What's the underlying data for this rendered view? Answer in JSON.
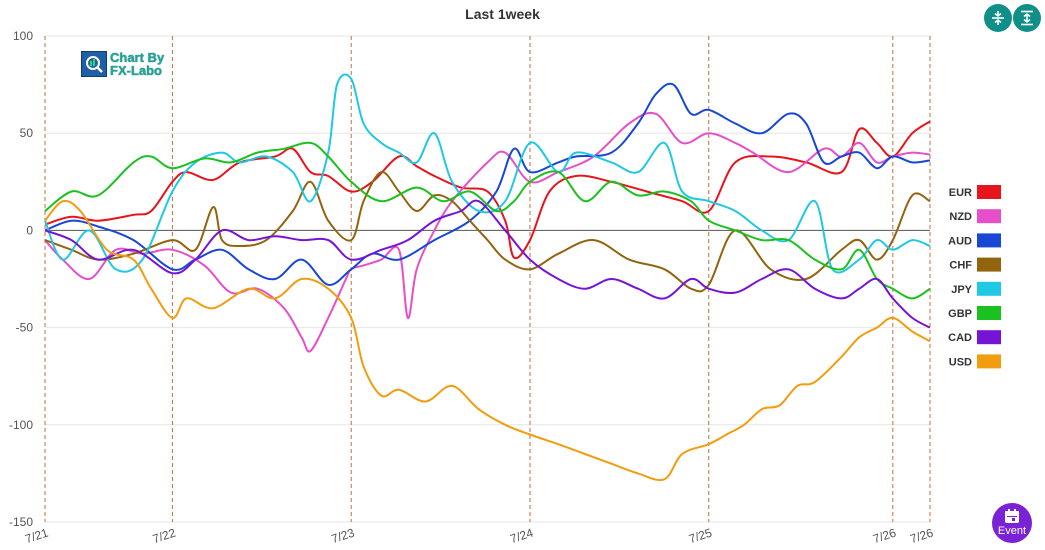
{
  "title": "Last 1week",
  "logo": {
    "line1": "Chart By",
    "line2": "FX-Labo"
  },
  "event_button": {
    "label": "Event"
  },
  "colors": {
    "accent": "#0f8f88",
    "event": "#7a22d6",
    "dayline": "#c0703a",
    "grid": "#e6e6e6",
    "zero": "#555555"
  },
  "icons": {
    "toolbar_1": "collapse-vertical-icon",
    "toolbar_2": "expand-vertical-icon",
    "event": "calendar-icon"
  },
  "chart_data": {
    "type": "line",
    "xlabel": "",
    "ylabel": "",
    "x_range": [
      0,
      5
    ],
    "ylim": [
      -150,
      100
    ],
    "yticks": [
      100,
      50,
      0,
      -50,
      -100,
      -150
    ],
    "xticks": [
      {
        "label": "7/21",
        "x": 0
      },
      {
        "label": "7/22",
        "x": 0.72
      },
      {
        "label": "7/23",
        "x": 1.73
      },
      {
        "label": "7/24",
        "x": 2.74
      },
      {
        "label": "7/25",
        "x": 3.75
      },
      {
        "label": "7/26",
        "x": 4.79
      },
      {
        "label": "7/26",
        "x": 5.0
      }
    ],
    "grid": "horizontal",
    "legend_position": "right",
    "series": [
      {
        "name": "EUR",
        "color": "#e8141b",
        "x": [
          0,
          0.15,
          0.3,
          0.5,
          0.6,
          0.72,
          0.8,
          0.95,
          1.1,
          1.3,
          1.4,
          1.5,
          1.6,
          1.73,
          1.85,
          2.0,
          2.1,
          2.2,
          2.35,
          2.5,
          2.6,
          2.65,
          2.74,
          2.85,
          3.0,
          3.2,
          3.4,
          3.6,
          3.75,
          3.9,
          4.1,
          4.3,
          4.5,
          4.6,
          4.7,
          4.79,
          4.9,
          5.0
        ],
        "values": [
          3,
          7,
          5,
          8,
          10,
          25,
          30,
          26,
          35,
          38,
          42,
          30,
          28,
          20,
          25,
          38,
          33,
          28,
          22,
          20,
          5,
          -14,
          -5,
          20,
          28,
          25,
          20,
          15,
          10,
          35,
          38,
          35,
          30,
          52,
          45,
          38,
          50,
          56
        ]
      },
      {
        "name": "NZD",
        "color": "#e64fc9",
        "x": [
          0,
          0.1,
          0.25,
          0.4,
          0.55,
          0.72,
          0.9,
          1.05,
          1.2,
          1.35,
          1.45,
          1.5,
          1.6,
          1.7,
          1.73,
          1.8,
          1.9,
          2.0,
          2.05,
          2.1,
          2.2,
          2.3,
          2.5,
          2.6,
          2.74,
          2.9,
          3.1,
          3.3,
          3.45,
          3.6,
          3.75,
          3.9,
          4.0,
          4.2,
          4.4,
          4.5,
          4.6,
          4.7,
          4.79,
          4.9,
          5.0
        ],
        "values": [
          -5,
          -15,
          -25,
          -10,
          -12,
          -10,
          -18,
          -32,
          -30,
          -40,
          -55,
          -62,
          -45,
          -25,
          -20,
          -18,
          -15,
          -10,
          -45,
          -20,
          0,
          15,
          35,
          40,
          25,
          30,
          38,
          55,
          60,
          45,
          50,
          45,
          40,
          30,
          42,
          38,
          45,
          35,
          38,
          40,
          39
        ]
      },
      {
        "name": "AUD",
        "color": "#1847d6",
        "x": [
          0,
          0.15,
          0.3,
          0.5,
          0.72,
          0.85,
          1.0,
          1.15,
          1.3,
          1.45,
          1.6,
          1.73,
          1.85,
          2.0,
          2.2,
          2.4,
          2.55,
          2.65,
          2.74,
          2.9,
          3.0,
          3.2,
          3.35,
          3.45,
          3.55,
          3.65,
          3.75,
          3.9,
          4.05,
          4.2,
          4.3,
          4.4,
          4.5,
          4.6,
          4.7,
          4.79,
          4.9,
          5.0
        ],
        "values": [
          0,
          5,
          2,
          -5,
          -20,
          -15,
          -10,
          -20,
          -25,
          -15,
          -28,
          -20,
          -12,
          -15,
          -5,
          5,
          20,
          42,
          30,
          35,
          38,
          40,
          55,
          70,
          75,
          60,
          62,
          55,
          50,
          60,
          55,
          35,
          38,
          40,
          32,
          38,
          35,
          36
        ]
      },
      {
        "name": "CHF",
        "color": "#93640e",
        "x": [
          0,
          0.15,
          0.3,
          0.5,
          0.72,
          0.85,
          0.95,
          1.0,
          1.1,
          1.25,
          1.4,
          1.5,
          1.6,
          1.73,
          1.8,
          1.9,
          2.0,
          2.1,
          2.2,
          2.3,
          2.4,
          2.5,
          2.6,
          2.74,
          2.9,
          3.1,
          3.3,
          3.5,
          3.65,
          3.75,
          3.9,
          4.1,
          4.3,
          4.5,
          4.6,
          4.7,
          4.79,
          4.9,
          5.0
        ],
        "values": [
          -5,
          -10,
          -15,
          -12,
          -5,
          -10,
          12,
          -5,
          -8,
          -5,
          10,
          25,
          5,
          -5,
          15,
          30,
          20,
          10,
          18,
          15,
          5,
          -5,
          -15,
          -20,
          -12,
          -5,
          -15,
          -20,
          -30,
          -28,
          0,
          -20,
          -25,
          -10,
          -5,
          -15,
          -5,
          18,
          15
        ]
      },
      {
        "name": "JPY",
        "color": "#1fc8e3",
        "x": [
          0,
          0.1,
          0.25,
          0.4,
          0.55,
          0.72,
          0.85,
          1.0,
          1.1,
          1.25,
          1.4,
          1.5,
          1.6,
          1.65,
          1.73,
          1.8,
          1.9,
          2.0,
          2.1,
          2.2,
          2.3,
          2.45,
          2.6,
          2.74,
          2.9,
          3.0,
          3.2,
          3.35,
          3.5,
          3.6,
          3.75,
          3.9,
          4.05,
          4.2,
          4.35,
          4.45,
          4.6,
          4.7,
          4.79,
          4.9,
          5.0
        ],
        "values": [
          5,
          -15,
          0,
          -20,
          -15,
          20,
          35,
          40,
          35,
          38,
          30,
          15,
          40,
          75,
          78,
          55,
          45,
          40,
          35,
          50,
          25,
          10,
          15,
          45,
          30,
          40,
          35,
          30,
          45,
          20,
          15,
          10,
          0,
          -5,
          15,
          -20,
          -15,
          -5,
          -10,
          -5,
          -8
        ]
      },
      {
        "name": "GBP",
        "color": "#1ac11f",
        "x": [
          0,
          0.15,
          0.3,
          0.5,
          0.6,
          0.72,
          0.9,
          1.05,
          1.2,
          1.35,
          1.5,
          1.6,
          1.73,
          1.9,
          2.1,
          2.25,
          2.4,
          2.55,
          2.65,
          2.74,
          2.9,
          3.05,
          3.2,
          3.35,
          3.5,
          3.65,
          3.75,
          3.9,
          4.05,
          4.2,
          4.35,
          4.5,
          4.6,
          4.7,
          4.79,
          4.9,
          5.0
        ],
        "values": [
          10,
          20,
          18,
          35,
          38,
          32,
          37,
          35,
          40,
          42,
          45,
          38,
          25,
          15,
          22,
          15,
          20,
          10,
          15,
          25,
          30,
          15,
          25,
          18,
          20,
          15,
          5,
          0,
          -5,
          -5,
          -15,
          -20,
          -10,
          -25,
          -30,
          -35,
          -30
        ]
      },
      {
        "name": "CAD",
        "color": "#7614d6",
        "x": [
          0,
          0.15,
          0.3,
          0.5,
          0.72,
          0.85,
          1.0,
          1.15,
          1.3,
          1.45,
          1.6,
          1.73,
          1.9,
          2.05,
          2.2,
          2.35,
          2.45,
          2.6,
          2.74,
          2.9,
          3.05,
          3.2,
          3.35,
          3.5,
          3.65,
          3.75,
          3.9,
          4.05,
          4.2,
          4.35,
          4.5,
          4.6,
          4.7,
          4.79,
          4.9,
          5.0
        ],
        "values": [
          0,
          -5,
          -15,
          -10,
          -22,
          -15,
          0,
          -5,
          -3,
          -5,
          -5,
          -15,
          -10,
          -5,
          5,
          10,
          15,
          0,
          -15,
          -25,
          -30,
          -25,
          -30,
          -35,
          -25,
          -30,
          -32,
          -25,
          -20,
          -30,
          -35,
          -30,
          -25,
          -35,
          -45,
          -50
        ]
      },
      {
        "name": "USD",
        "color": "#f29c10",
        "x": [
          0,
          0.1,
          0.2,
          0.35,
          0.5,
          0.6,
          0.72,
          0.8,
          0.95,
          1.15,
          1.3,
          1.45,
          1.6,
          1.73,
          1.8,
          1.9,
          2.0,
          2.15,
          2.3,
          2.45,
          2.6,
          2.74,
          2.9,
          3.05,
          3.2,
          3.35,
          3.5,
          3.6,
          3.75,
          3.85,
          3.95,
          4.05,
          4.15,
          4.25,
          4.35,
          4.5,
          4.6,
          4.7,
          4.79,
          4.9,
          5.0
        ],
        "values": [
          5,
          15,
          10,
          -10,
          -15,
          -30,
          -45,
          -35,
          -40,
          -30,
          -35,
          -25,
          -30,
          -45,
          -70,
          -85,
          -82,
          -88,
          -80,
          -92,
          -100,
          -105,
          -110,
          -115,
          -120,
          -125,
          -128,
          -115,
          -110,
          -105,
          -100,
          -92,
          -90,
          -80,
          -78,
          -65,
          -55,
          -50,
          -45,
          -52,
          -57
        ]
      }
    ]
  }
}
